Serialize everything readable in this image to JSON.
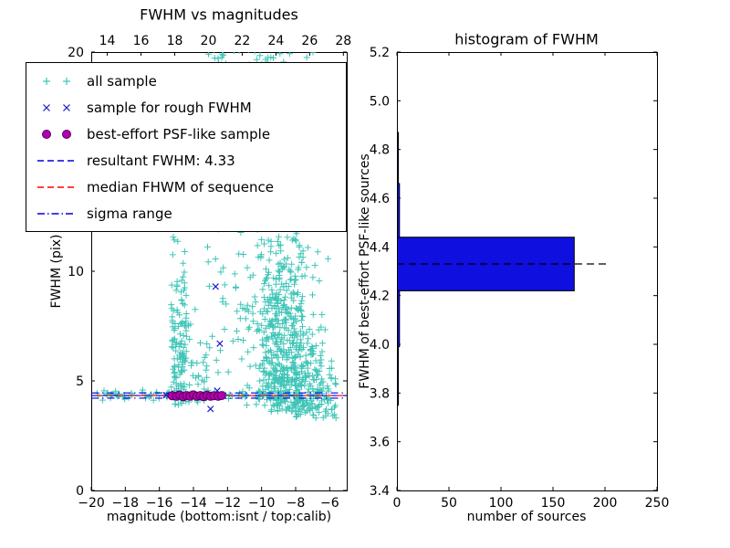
{
  "labels": {
    "left_title": "FWHM vs magnitudes",
    "right_title": "histogram of FWHM",
    "left_xlabel": "magnitude (bottom:isnt / top:calib)",
    "left_ylabel": "FWHM (pix)",
    "right_xlabel": "number of sources",
    "right_ylabel": "FWHM of best-effort PSF-like sources"
  },
  "colors": {
    "all_sample": "#3fc5b7",
    "rough_sample": "#1515cc",
    "psf_sample": "#b000b0",
    "psf_sample_edge": "#550055",
    "resultant_line": "#0000dd",
    "median_line": "#ff0000",
    "sigma_line": "#0000dd",
    "bar_fill": "#0f0fe0",
    "axis": "#000000",
    "hist_median_line": "#000000"
  },
  "legend": {
    "items": [
      {
        "label": "all sample",
        "marker": "plus",
        "color": "#3fc5b7"
      },
      {
        "label": "sample for rough FWHM",
        "marker": "x",
        "color": "#1515cc"
      },
      {
        "label": "best-effort PSF-like sample",
        "marker": "circle",
        "color": "#b000b0",
        "edge": "#550055"
      },
      {
        "label": "resultant FWHM: 4.33",
        "marker": "dashed",
        "color": "#0000dd"
      },
      {
        "label": "median FHWM of sequence",
        "marker": "dashed",
        "color": "#ff0000"
      },
      {
        "label": "sigma range",
        "marker": "dashdot",
        "color": "#0000dd"
      }
    ]
  },
  "chart_data": [
    {
      "type": "scatter",
      "title": "FWHM vs magnitudes",
      "xlabel": "magnitude (bottom:isnt / top:calib)",
      "ylabel": "FWHM (pix)",
      "xlim": [
        -20,
        -5
      ],
      "ylim": [
        0,
        20
      ],
      "x_ticks": [
        -20,
        -18,
        -16,
        -14,
        -12,
        -10,
        -8,
        -6
      ],
      "y_ticks": [
        0,
        5,
        10,
        15,
        20
      ],
      "top_axis": {
        "ticks": [
          14,
          16,
          18,
          20,
          22,
          24,
          26,
          28
        ],
        "lim": [
          13.05,
          28.2
        ]
      },
      "series": [
        {
          "name": "all sample",
          "marker": "plus",
          "color": "#3fc5b7",
          "seed": 42,
          "clusters": [
            {
              "n": 620,
              "x": {
                "dist": "normal",
                "mu": -8.7,
                "sigma": 1.0,
                "min": -11.5,
                "max": -6.1
              },
              "y": {
                "dist": "absnormal",
                "base": 3.6,
                "sigma": 4.2,
                "min": 3.2,
                "max": 20.5
              }
            },
            {
              "n": 130,
              "x": {
                "dist": "uniform",
                "min": -15.3,
                "max": -14.4
              },
              "y": {
                "dist": "absnormal",
                "base": 3.9,
                "sigma": 3.4,
                "min": 3.8,
                "max": 13.5
              }
            },
            {
              "n": 90,
              "x": {
                "dist": "uniform",
                "min": -19.9,
                "max": -6.0
              },
              "y": {
                "dist": "normal",
                "mu": 4.35,
                "sigma": 0.12,
                "min": 3.9,
                "max": 4.8
              }
            },
            {
              "n": 120,
              "x": {
                "dist": "normal",
                "mu": -9.2,
                "sigma": 1.6,
                "min": -13.5,
                "max": -6.3
              },
              "y": {
                "dist": "uniform",
                "min": 16.3,
                "max": 20.4
              }
            },
            {
              "n": 90,
              "x": {
                "dist": "uniform",
                "min": -8.2,
                "max": -5.6
              },
              "y": {
                "dist": "absnormal",
                "base": 3.3,
                "sigma": 1.5,
                "min": 3.0,
                "max": 7.5
              }
            },
            {
              "n": 55,
              "x": {
                "dist": "uniform",
                "min": -13.3,
                "max": -10.6
              },
              "y": {
                "dist": "uniform",
                "min": 4.2,
                "max": 16.0
              }
            },
            {
              "n": 30,
              "x": {
                "dist": "uniform",
                "min": -14.4,
                "max": -13.2
              },
              "y": {
                "dist": "absnormal",
                "base": 4.0,
                "sigma": 2.2,
                "min": 3.9,
                "max": 9.5
              }
            },
            {
              "n": 25,
              "x": {
                "dist": "uniform",
                "min": -12.9,
                "max": -12.2
              },
              "y": {
                "dist": "uniform",
                "min": 18.0,
                "max": 20.3
              }
            }
          ]
        },
        {
          "name": "sample for rough FWHM",
          "marker": "x",
          "color": "#1515cc",
          "points": [
            [
              -12.7,
              9.3
            ],
            [
              -12.45,
              6.7
            ],
            [
              -13.0,
              3.72
            ],
            [
              -12.6,
              4.55
            ],
            [
              -15.6,
              4.35
            ],
            [
              -15.1,
              4.4
            ],
            [
              -14.6,
              4.3
            ],
            [
              -14.05,
              4.35
            ],
            [
              -13.5,
              4.3
            ],
            [
              -12.95,
              4.35
            ],
            [
              -12.4,
              4.3
            ]
          ]
        },
        {
          "name": "best-effort PSF-like sample",
          "marker": "circle",
          "color": "#b000b0",
          "edge": "#550055",
          "points": [
            [
              -15.25,
              4.32
            ],
            [
              -15.0,
              4.3
            ],
            [
              -14.8,
              4.35
            ],
            [
              -14.6,
              4.28
            ],
            [
              -14.4,
              4.33
            ],
            [
              -14.2,
              4.3
            ],
            [
              -14.0,
              4.36
            ],
            [
              -13.8,
              4.3
            ],
            [
              -13.6,
              4.33
            ],
            [
              -13.4,
              4.28
            ],
            [
              -13.2,
              4.34
            ],
            [
              -13.0,
              4.3
            ],
            [
              -12.8,
              4.32
            ],
            [
              -12.55,
              4.3
            ],
            [
              -12.35,
              4.33
            ]
          ]
        }
      ],
      "lines": [
        {
          "name": "resultant FWHM",
          "value": 4.33,
          "style": "dashed",
          "color": "#0000dd",
          "span": [
            -20,
            -5
          ],
          "dash_offset": 0
        },
        {
          "name": "median FHWM of sequence",
          "value": 4.33,
          "style": "dashed",
          "color": "#ff0000",
          "span": [
            -20,
            -5
          ],
          "dash_offset": 7
        },
        {
          "name": "sigma range low",
          "value": 4.21,
          "style": "dashdot",
          "color": "#0000dd",
          "span": [
            -20,
            -5
          ],
          "dash_offset": 0
        },
        {
          "name": "sigma range high",
          "value": 4.45,
          "style": "dashdot",
          "color": "#0000dd",
          "span": [
            -20,
            -5
          ],
          "dash_offset": 0
        }
      ],
      "resultant_fwhm": 4.33
    },
    {
      "type": "bar",
      "orientation": "horizontal",
      "title": "histogram of FWHM",
      "xlabel": "number of sources",
      "ylabel": "FWHM of best-effort PSF-like sources",
      "xlim": [
        0,
        250
      ],
      "ylim": [
        3.4,
        5.2
      ],
      "x_ticks": [
        0,
        50,
        100,
        150,
        200,
        250
      ],
      "y_ticks": [
        3.4,
        3.6,
        3.8,
        4.0,
        4.2,
        4.4,
        4.6,
        4.8,
        5.0,
        5.2
      ],
      "bar_fill": "#0f0fe0",
      "bins": [
        {
          "y0": 3.75,
          "y1": 3.99,
          "count": 1
        },
        {
          "y0": 3.99,
          "y1": 4.22,
          "count": 2
        },
        {
          "y0": 4.22,
          "y1": 4.44,
          "count": 170
        },
        {
          "y0": 4.44,
          "y1": 4.66,
          "count": 2
        },
        {
          "y0": 4.66,
          "y1": 4.87,
          "count": 1
        }
      ],
      "median_line": {
        "value": 4.33,
        "extent": 205,
        "style": "dashed",
        "color": "#000000"
      }
    }
  ]
}
